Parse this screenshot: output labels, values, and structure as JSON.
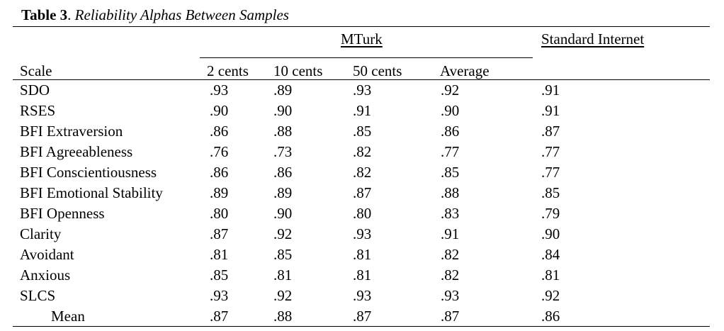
{
  "caption": {
    "label": "Table 3",
    "separator": ". ",
    "title": "Reliability Alphas Between Samples"
  },
  "headers": {
    "group_mturk": "MTurk",
    "group_standard": "Standard Internet",
    "scale": "Scale",
    "col_2cents": "2 cents",
    "col_10cents": "10 cents",
    "col_50cents": "50 cents",
    "col_average": "Average"
  },
  "rows": [
    {
      "scale": "SDO",
      "c2": ".93",
      "c10": ".89",
      "c50": ".93",
      "avg": ".92",
      "std": ".91"
    },
    {
      "scale": "RSES",
      "c2": ".90",
      "c10": ".90",
      "c50": ".91",
      "avg": ".90",
      "std": ".91"
    },
    {
      "scale": "BFI Extraversion",
      "c2": ".86",
      "c10": ".88",
      "c50": ".85",
      "avg": ".86",
      "std": ".87"
    },
    {
      "scale": "BFI Agreeableness",
      "c2": ".76",
      "c10": ".73",
      "c50": ".82",
      "avg": ".77",
      "std": ".77"
    },
    {
      "scale": "BFI Conscientiousness",
      "c2": ".86",
      "c10": ".86",
      "c50": ".82",
      "avg": ".85",
      "std": ".77"
    },
    {
      "scale": "BFI Emotional Stability",
      "c2": ".89",
      "c10": ".89",
      "c50": ".87",
      "avg": ".88",
      "std": ".85"
    },
    {
      "scale": "BFI Openness",
      "c2": ".80",
      "c10": ".90",
      "c50": ".80",
      "avg": ".83",
      "std": ".79"
    },
    {
      "scale": "Clarity",
      "c2": ".87",
      "c10": ".92",
      "c50": ".93",
      "avg": ".91",
      "std": ".90"
    },
    {
      "scale": "Avoidant",
      "c2": ".81",
      "c10": ".85",
      "c50": ".81",
      "avg": ".82",
      "std": ".84"
    },
    {
      "scale": "Anxious",
      "c2": ".85",
      "c10": ".81",
      "c50": ".81",
      "avg": ".82",
      "std": ".81"
    },
    {
      "scale": "SLCS",
      "c2": ".93",
      "c10": ".92",
      "c50": ".93",
      "avg": ".93",
      "std": ".92"
    },
    {
      "scale": "Mean",
      "c2": ".87",
      "c10": ".88",
      "c50": ".87",
      "avg": ".87",
      "std": ".86"
    }
  ]
}
